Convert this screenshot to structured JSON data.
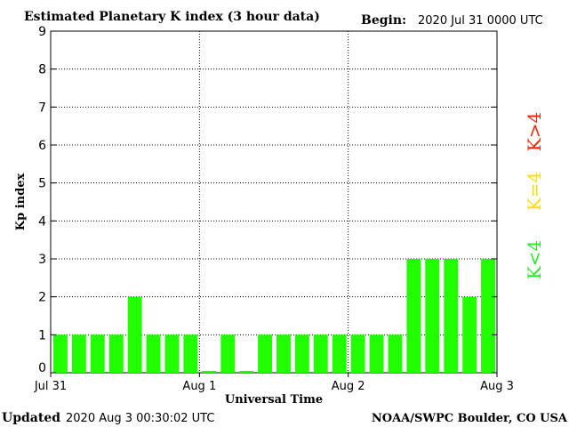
{
  "header": {
    "title": "Estimated Planetary K index (3 hour data)",
    "begin_label": "Begin:",
    "begin_value": "2020 Jul 31 0000 UTC"
  },
  "footer": {
    "updated_label": "Updated",
    "updated_value": "2020 Aug  3 00:30:02 UTC",
    "source": "NOAA/SWPC Boulder, CO USA"
  },
  "legend": [
    {
      "label": "K<4",
      "color": "#22ee22"
    },
    {
      "label": "K=4",
      "color": "#ffdd00"
    },
    {
      "label": "K>4",
      "color": "#ff2200"
    }
  ],
  "chart_data": {
    "type": "bar",
    "title": "Estimated Planetary K index (3 hour data)",
    "xlabel": "Universal Time",
    "ylabel": "Kp index",
    "ylim": [
      0,
      9
    ],
    "yticks": [
      "0",
      "1",
      "2",
      "3",
      "4",
      "5",
      "6",
      "7",
      "8",
      "9"
    ],
    "xtick_labels": [
      "Jul 31",
      "Aug 1",
      "Aug 2",
      "Aug 3"
    ],
    "values": [
      1,
      1,
      1,
      1,
      2,
      1,
      1,
      1,
      0.05,
      1,
      0.05,
      1,
      1,
      1,
      1,
      1,
      1,
      1,
      1,
      3,
      3,
      3,
      2,
      3
    ],
    "bar_color": "#22ff00",
    "grid": "dotted"
  }
}
